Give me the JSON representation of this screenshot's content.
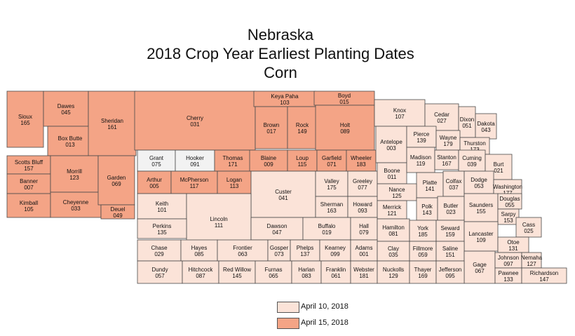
{
  "title": {
    "line1": "Nebraska",
    "line2": "2018 Crop Year Earliest Planting Dates",
    "line3": "Corn"
  },
  "colors": {
    "april_10": "#fbe3d8",
    "april_15": "#f4a486",
    "no_date": "#f2f2f2"
  },
  "legend": [
    {
      "label": "April 10, 2018",
      "color_key": "april_10"
    },
    {
      "label": "April 15, 2018",
      "color_key": "april_15"
    }
  ],
  "counties": [
    {
      "name": "Sioux",
      "code": "165",
      "date": "april_15"
    },
    {
      "name": "Dawes",
      "code": "045",
      "date": "april_15"
    },
    {
      "name": "Box Butte",
      "code": "013",
      "date": "april_15"
    },
    {
      "name": "Sheridan",
      "code": "161",
      "date": "april_15"
    },
    {
      "name": "Cherry",
      "code": "031",
      "date": "april_15"
    },
    {
      "name": "Keya Paha",
      "code": "103",
      "date": "april_15"
    },
    {
      "name": "Boyd",
      "code": "015",
      "date": "april_15"
    },
    {
      "name": "Brown",
      "code": "017",
      "date": "april_15"
    },
    {
      "name": "Rock",
      "code": "149",
      "date": "april_15"
    },
    {
      "name": "Holt",
      "code": "089",
      "date": "april_15"
    },
    {
      "name": "Knox",
      "code": "107",
      "date": "april_10"
    },
    {
      "name": "Cedar",
      "code": "027",
      "date": "april_10"
    },
    {
      "name": "Dixon",
      "code": "051",
      "date": "april_10"
    },
    {
      "name": "Dakota",
      "code": "043",
      "date": "april_10"
    },
    {
      "name": "Scotts Bluff",
      "code": "157",
      "date": "april_15"
    },
    {
      "name": "Banner",
      "code": "007",
      "date": "april_15"
    },
    {
      "name": "Kimball",
      "code": "105",
      "date": "april_15"
    },
    {
      "name": "Morrill",
      "code": "123",
      "date": "april_15"
    },
    {
      "name": "Cheyenne",
      "code": "033",
      "date": "april_15"
    },
    {
      "name": "Garden",
      "code": "069",
      "date": "april_15"
    },
    {
      "name": "Deuel",
      "code": "049",
      "date": "april_15"
    },
    {
      "name": "Grant",
      "code": "075",
      "date": "no_date"
    },
    {
      "name": "Hooker",
      "code": "091",
      "date": "no_date"
    },
    {
      "name": "Thomas",
      "code": "171",
      "date": "april_15"
    },
    {
      "name": "Blaine",
      "code": "009",
      "date": "april_15"
    },
    {
      "name": "Loup",
      "code": "115",
      "date": "april_15"
    },
    {
      "name": "Garfield",
      "code": "071",
      "date": "april_15"
    },
    {
      "name": "Wheeler",
      "code": "183",
      "date": "april_15"
    },
    {
      "name": "Antelope",
      "code": "003",
      "date": "april_10"
    },
    {
      "name": "Pierce",
      "code": "139",
      "date": "april_10"
    },
    {
      "name": "Wayne",
      "code": "179",
      "date": "april_10"
    },
    {
      "name": "Thurston",
      "code": "173",
      "date": "april_10"
    },
    {
      "name": "Arthur",
      "code": "005",
      "date": "april_15"
    },
    {
      "name": "McPherson",
      "code": "117",
      "date": "april_15"
    },
    {
      "name": "Logan",
      "code": "113",
      "date": "april_15"
    },
    {
      "name": "Custer",
      "code": "041",
      "date": "april_10"
    },
    {
      "name": "Valley",
      "code": "175",
      "date": "april_10"
    },
    {
      "name": "Greeley",
      "code": "077",
      "date": "april_10"
    },
    {
      "name": "Boone",
      "code": "011",
      "date": "april_10"
    },
    {
      "name": "Madison",
      "code": "119",
      "date": "april_10"
    },
    {
      "name": "Stanton",
      "code": "167",
      "date": "april_10"
    },
    {
      "name": "Cuming",
      "code": "039",
      "date": "april_10"
    },
    {
      "name": "Burt",
      "code": "021",
      "date": "april_10"
    },
    {
      "name": "Platte",
      "code": "141",
      "date": "april_10"
    },
    {
      "name": "Colfax",
      "code": "037",
      "date": "april_10"
    },
    {
      "name": "Dodge",
      "code": "053",
      "date": "april_10"
    },
    {
      "name": "Washington",
      "code": "177",
      "date": "april_10"
    },
    {
      "name": "Keith",
      "code": "101",
      "date": "april_10"
    },
    {
      "name": "Lincoln",
      "code": "111",
      "date": "april_10"
    },
    {
      "name": "Sherman",
      "code": "163",
      "date": "april_10"
    },
    {
      "name": "Howard",
      "code": "093",
      "date": "april_10"
    },
    {
      "name": "Nance",
      "code": "125",
      "date": "april_10"
    },
    {
      "name": "Merrick",
      "code": "121",
      "date": "april_10"
    },
    {
      "name": "Polk",
      "code": "143",
      "date": "april_10"
    },
    {
      "name": "Butler",
      "code": "023",
      "date": "april_10"
    },
    {
      "name": "Saunders",
      "code": "155",
      "date": "april_10"
    },
    {
      "name": "Douglas",
      "code": "055",
      "date": "april_10"
    },
    {
      "name": "Sarpy",
      "code": "153",
      "date": "april_10"
    },
    {
      "name": "Cass",
      "code": "025",
      "date": "april_10"
    },
    {
      "name": "Perkins",
      "code": "135",
      "date": "april_10"
    },
    {
      "name": "Dawson",
      "code": "047",
      "date": "april_10"
    },
    {
      "name": "Buffalo",
      "code": "019",
      "date": "april_10"
    },
    {
      "name": "Hall",
      "code": "079",
      "date": "april_10"
    },
    {
      "name": "Hamilton",
      "code": "081",
      "date": "april_10"
    },
    {
      "name": "York",
      "code": "185",
      "date": "april_10"
    },
    {
      "name": "Seward",
      "code": "159",
      "date": "april_10"
    },
    {
      "name": "Lancaster",
      "code": "109",
      "date": "april_10"
    },
    {
      "name": "Otoe",
      "code": "131",
      "date": "april_10"
    },
    {
      "name": "Chase",
      "code": "029",
      "date": "april_10"
    },
    {
      "name": "Hayes",
      "code": "085",
      "date": "april_10"
    },
    {
      "name": "Frontier",
      "code": "063",
      "date": "april_10"
    },
    {
      "name": "Gosper",
      "code": "073",
      "date": "april_10"
    },
    {
      "name": "Phelps",
      "code": "137",
      "date": "april_10"
    },
    {
      "name": "Kearney",
      "code": "099",
      "date": "april_10"
    },
    {
      "name": "Adams",
      "code": "001",
      "date": "april_10"
    },
    {
      "name": "Clay",
      "code": "035",
      "date": "april_10"
    },
    {
      "name": "Fillmore",
      "code": "059",
      "date": "april_10"
    },
    {
      "name": "Saline",
      "code": "151",
      "date": "april_10"
    },
    {
      "name": "Gage",
      "code": "067",
      "date": "april_10"
    },
    {
      "name": "Johnson",
      "code": "097",
      "date": "april_10"
    },
    {
      "name": "Nemaha",
      "code": "127",
      "date": "april_10"
    },
    {
      "name": "Dundy",
      "code": "057",
      "date": "april_10"
    },
    {
      "name": "Hitchcock",
      "code": "087",
      "date": "april_10"
    },
    {
      "name": "Red Willow",
      "code": "145",
      "date": "april_10"
    },
    {
      "name": "Furnas",
      "code": "065",
      "date": "april_10"
    },
    {
      "name": "Harlan",
      "code": "083",
      "date": "april_10"
    },
    {
      "name": "Franklin",
      "code": "061",
      "date": "april_10"
    },
    {
      "name": "Webster",
      "code": "181",
      "date": "april_10"
    },
    {
      "name": "Nuckolls",
      "code": "129",
      "date": "april_10"
    },
    {
      "name": "Thayer",
      "code": "169",
      "date": "april_10"
    },
    {
      "name": "Jefferson",
      "code": "095",
      "date": "april_10"
    },
    {
      "name": "Pawnee",
      "code": "133",
      "date": "april_10"
    },
    {
      "name": "Richardson",
      "code": "147",
      "date": "april_10"
    }
  ]
}
